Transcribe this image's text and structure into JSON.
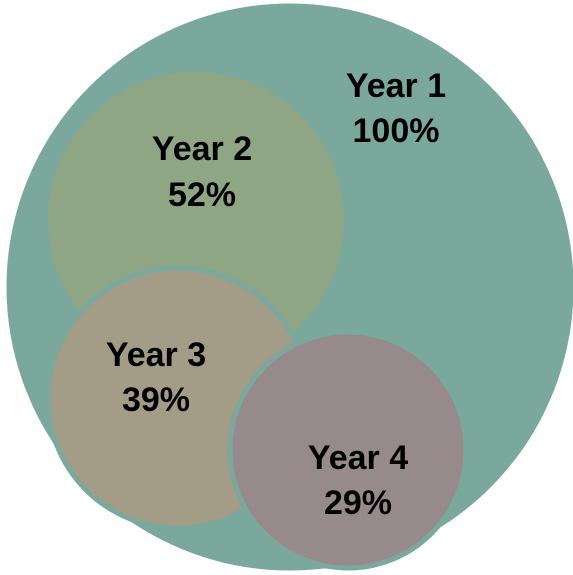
{
  "diagram": {
    "circles": [
      {
        "id": "year1",
        "name": "Year 1",
        "value": "100%",
        "color": "#7aa89c"
      },
      {
        "id": "year2",
        "name": "Year 2",
        "value": "52%",
        "color": "#8fa685"
      },
      {
        "id": "year3",
        "name": "Year 3",
        "value": "39%",
        "color": "#a39c87"
      },
      {
        "id": "year4",
        "name": "Year 4",
        "value": "29%",
        "color": "#968a8c"
      }
    ],
    "outline_color": "#7aa89c"
  }
}
